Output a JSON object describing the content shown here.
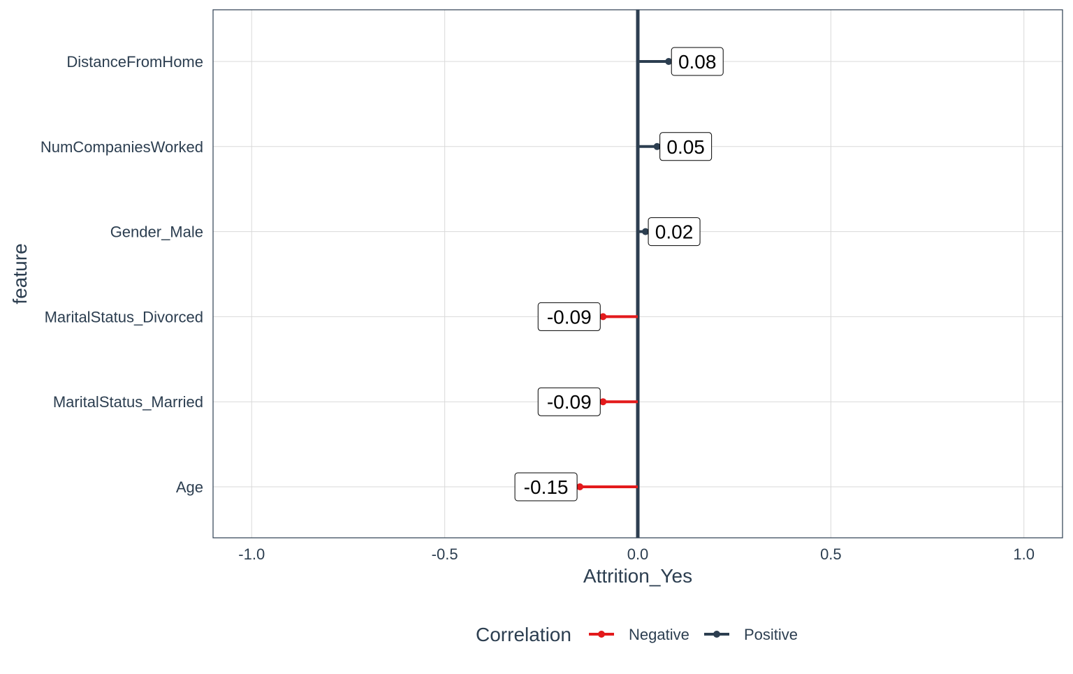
{
  "chart_data": {
    "type": "lollipop",
    "features": [
      "DistanceFromHome",
      "NumCompaniesWorked",
      "Gender_Male",
      "MaritalStatus_Divorced",
      "MaritalStatus_Married",
      "Age"
    ],
    "values": [
      0.08,
      0.05,
      0.02,
      -0.09,
      -0.09,
      -0.15
    ],
    "labels": [
      "0.08",
      "0.05",
      "0.02",
      "-0.09",
      "-0.09",
      "-0.15"
    ],
    "categories_positive_negative": [
      "Positive",
      "Positive",
      "Positive",
      "Negative",
      "Negative",
      "Negative"
    ],
    "xlabel": "Attrition_Yes",
    "ylabel": "feature",
    "xlim": [
      -1.1,
      1.1
    ],
    "xticks": [
      -1.0,
      -0.5,
      0.0,
      0.5,
      1.0
    ],
    "xtick_labels": [
      "-1.0",
      "-0.5",
      "0.0",
      "0.5",
      "1.0"
    ],
    "grid": true,
    "legend": {
      "title": "Correlation",
      "position": "bottom",
      "items": [
        {
          "name": "Negative",
          "color": "#e31a1c"
        },
        {
          "name": "Positive",
          "color": "#2c3e50"
        }
      ]
    },
    "colors": {
      "positive": "#2c3e50",
      "negative": "#e31a1c",
      "grid": "#d9d9d9",
      "frame": "#2c3e50",
      "zero_line": "#2c3e50"
    }
  }
}
